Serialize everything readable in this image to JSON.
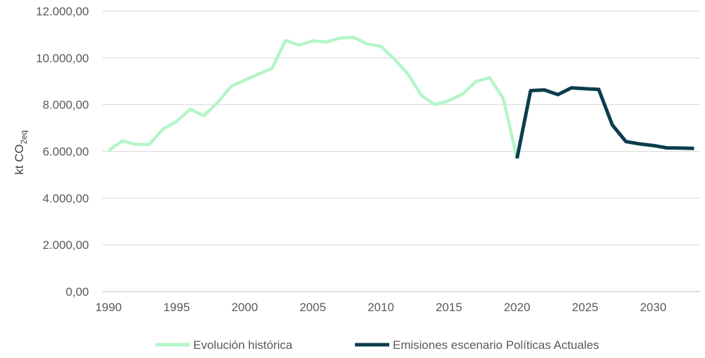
{
  "chart_data": {
    "type": "line",
    "title": "",
    "xlabel": "",
    "ylabel": "kt CO",
    "ylabel_sub": "2eq",
    "xlim": [
      1990,
      2033
    ],
    "ylim": [
      0,
      12000
    ],
    "grid": true,
    "legend_position": "bottom",
    "x_ticks": [
      1990,
      1995,
      2000,
      2005,
      2010,
      2015,
      2020,
      2025,
      2030
    ],
    "x_tick_labels": [
      "1990",
      "1995",
      "2000",
      "2005",
      "2010",
      "2015",
      "2020",
      "2025",
      "2030"
    ],
    "y_ticks": [
      0,
      2000,
      4000,
      6000,
      8000,
      10000,
      12000
    ],
    "y_tick_labels": [
      "0,00",
      "2.000,00",
      "4.000,00",
      "6.000,00",
      "8.000,00",
      "10.000,00",
      "12.000,00"
    ],
    "series": [
      {
        "name": "Evolución histórica",
        "color": "#b4f5c8",
        "x": [
          1990,
          1991,
          1992,
          1993,
          1994,
          1995,
          1996,
          1997,
          1998,
          1999,
          2000,
          2001,
          2002,
          2003,
          2004,
          2005,
          2006,
          2007,
          2008,
          2009,
          2010,
          2011,
          2012,
          2013,
          2014,
          2015,
          2016,
          2017,
          2018,
          2019,
          2020
        ],
        "values": [
          6030,
          6450,
          6300,
          6300,
          6950,
          7280,
          7800,
          7530,
          8080,
          8780,
          9050,
          9300,
          9550,
          10750,
          10550,
          10730,
          10680,
          10850,
          10880,
          10600,
          10500,
          9950,
          9300,
          8380,
          8000,
          8180,
          8450,
          9000,
          9150,
          8250,
          5700
        ]
      },
      {
        "name": "Emisiones escenario Políticas Actuales",
        "color": "#0b3d4d",
        "x": [
          2020,
          2021,
          2022,
          2023,
          2024,
          2025,
          2026,
          2027,
          2028,
          2029,
          2030,
          2031,
          2032,
          2033
        ],
        "values": [
          5700,
          8600,
          8630,
          8430,
          8720,
          8680,
          8650,
          7130,
          6420,
          6320,
          6250,
          6150,
          6140,
          6130
        ]
      }
    ]
  }
}
